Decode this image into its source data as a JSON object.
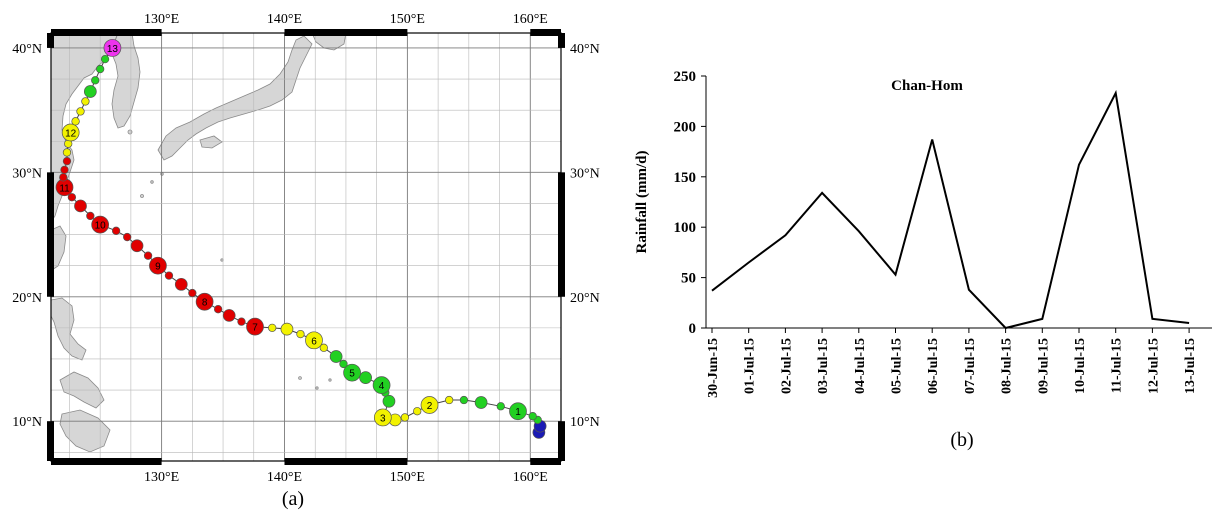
{
  "panel_a": {
    "caption": "(a)",
    "lon_labels": [
      "130°E",
      "140°E",
      "150°E",
      "160°E"
    ],
    "lat_labels": [
      "10°N",
      "20°N",
      "30°N",
      "40°N"
    ],
    "lon_values": [
      130,
      140,
      150,
      160
    ],
    "lat_values": [
      10,
      20,
      30,
      40
    ],
    "lon_range": [
      121,
      162.5
    ],
    "lat_range": [
      6.8,
      41.2
    ],
    "colors": {
      "red": "#e00000",
      "yellow": "#f2f200",
      "green": "#22d022",
      "blue": "#1a1ab5",
      "magenta": "#ee33ee",
      "land": "#d6d6d6"
    },
    "track": [
      {
        "lon": 160.7,
        "lat": 9.1,
        "c": "blue",
        "s": 2
      },
      {
        "lon": 160.8,
        "lat": 9.6,
        "c": "blue",
        "s": 2
      },
      {
        "lon": 160.6,
        "lat": 10.1,
        "c": "green",
        "s": 1
      },
      {
        "lon": 160.2,
        "lat": 10.4,
        "c": "green",
        "s": 1
      },
      {
        "lon": 159.0,
        "lat": 10.8,
        "c": "green",
        "s": 2,
        "label": "1"
      },
      {
        "lon": 157.6,
        "lat": 11.2,
        "c": "green",
        "s": 1
      },
      {
        "lon": 156.0,
        "lat": 11.5,
        "c": "green",
        "s": 2
      },
      {
        "lon": 154.6,
        "lat": 11.7,
        "c": "green",
        "s": 1
      },
      {
        "lon": 153.4,
        "lat": 11.7,
        "c": "yellow",
        "s": 1
      },
      {
        "lon": 151.8,
        "lat": 11.3,
        "c": "yellow",
        "s": 2,
        "label": "2"
      },
      {
        "lon": 150.8,
        "lat": 10.8,
        "c": "yellow",
        "s": 1
      },
      {
        "lon": 149.8,
        "lat": 10.3,
        "c": "yellow",
        "s": 1
      },
      {
        "lon": 149.0,
        "lat": 10.1,
        "c": "yellow",
        "s": 2
      },
      {
        "lon": 148.0,
        "lat": 10.3,
        "c": "yellow",
        "s": 2,
        "label": "3"
      },
      {
        "lon": 148.5,
        "lat": 11.6,
        "c": "green",
        "s": 2
      },
      {
        "lon": 148.2,
        "lat": 12.3,
        "c": "green",
        "s": 1
      },
      {
        "lon": 147.9,
        "lat": 12.9,
        "c": "green",
        "s": 2,
        "label": "4"
      },
      {
        "lon": 146.6,
        "lat": 13.5,
        "c": "green",
        "s": 2
      },
      {
        "lon": 145.5,
        "lat": 13.9,
        "c": "green",
        "s": 2,
        "label": "5"
      },
      {
        "lon": 144.8,
        "lat": 14.6,
        "c": "green",
        "s": 1
      },
      {
        "lon": 144.2,
        "lat": 15.2,
        "c": "green",
        "s": 2
      },
      {
        "lon": 143.2,
        "lat": 15.9,
        "c": "yellow",
        "s": 1
      },
      {
        "lon": 142.4,
        "lat": 16.5,
        "c": "yellow",
        "s": 2,
        "label": "6"
      },
      {
        "lon": 141.3,
        "lat": 17.0,
        "c": "yellow",
        "s": 1
      },
      {
        "lon": 140.2,
        "lat": 17.4,
        "c": "yellow",
        "s": 2
      },
      {
        "lon": 139.0,
        "lat": 17.5,
        "c": "yellow",
        "s": 1
      },
      {
        "lon": 137.6,
        "lat": 17.6,
        "c": "red",
        "s": 2,
        "label": "7"
      },
      {
        "lon": 136.5,
        "lat": 18.0,
        "c": "red",
        "s": 1
      },
      {
        "lon": 135.5,
        "lat": 18.5,
        "c": "red",
        "s": 2
      },
      {
        "lon": 134.6,
        "lat": 19.0,
        "c": "red",
        "s": 1
      },
      {
        "lon": 133.5,
        "lat": 19.6,
        "c": "red",
        "s": 2,
        "label": "8"
      },
      {
        "lon": 132.5,
        "lat": 20.3,
        "c": "red",
        "s": 1
      },
      {
        "lon": 131.6,
        "lat": 21.0,
        "c": "red",
        "s": 2
      },
      {
        "lon": 130.6,
        "lat": 21.7,
        "c": "red",
        "s": 1
      },
      {
        "lon": 129.7,
        "lat": 22.5,
        "c": "red",
        "s": 2,
        "label": "9"
      },
      {
        "lon": 128.9,
        "lat": 23.3,
        "c": "red",
        "s": 1
      },
      {
        "lon": 128.0,
        "lat": 24.1,
        "c": "red",
        "s": 2
      },
      {
        "lon": 127.2,
        "lat": 24.8,
        "c": "red",
        "s": 1
      },
      {
        "lon": 126.3,
        "lat": 25.3,
        "c": "red",
        "s": 1
      },
      {
        "lon": 125.0,
        "lat": 25.8,
        "c": "red",
        "s": 2,
        "label": "10"
      },
      {
        "lon": 124.2,
        "lat": 26.5,
        "c": "red",
        "s": 1
      },
      {
        "lon": 123.4,
        "lat": 27.3,
        "c": "red",
        "s": 2
      },
      {
        "lon": 122.7,
        "lat": 28.0,
        "c": "red",
        "s": 1
      },
      {
        "lon": 122.1,
        "lat": 28.8,
        "c": "red",
        "s": 2,
        "label": "11"
      },
      {
        "lon": 122.0,
        "lat": 29.6,
        "c": "red",
        "s": 1
      },
      {
        "lon": 122.1,
        "lat": 30.2,
        "c": "red",
        "s": 1
      },
      {
        "lon": 122.3,
        "lat": 30.9,
        "c": "red",
        "s": 1
      },
      {
        "lon": 122.3,
        "lat": 31.6,
        "c": "yellow",
        "s": 1
      },
      {
        "lon": 122.4,
        "lat": 32.3,
        "c": "yellow",
        "s": 1
      },
      {
        "lon": 122.6,
        "lat": 33.2,
        "c": "yellow",
        "s": 2,
        "label": "12"
      },
      {
        "lon": 123.0,
        "lat": 34.1,
        "c": "yellow",
        "s": 1
      },
      {
        "lon": 123.4,
        "lat": 34.9,
        "c": "yellow",
        "s": 1
      },
      {
        "lon": 123.8,
        "lat": 35.7,
        "c": "yellow",
        "s": 1
      },
      {
        "lon": 124.2,
        "lat": 36.5,
        "c": "green",
        "s": 2
      },
      {
        "lon": 124.6,
        "lat": 37.4,
        "c": "green",
        "s": 1
      },
      {
        "lon": 125.0,
        "lat": 38.3,
        "c": "green",
        "s": 1
      },
      {
        "lon": 125.4,
        "lat": 39.1,
        "c": "green",
        "s": 1
      },
      {
        "lon": 126.0,
        "lat": 40.0,
        "c": "magenta",
        "s": 2,
        "label": "13"
      }
    ]
  },
  "panel_b": {
    "caption": "(b)"
  },
  "chart_data": {
    "type": "line",
    "title": "Chan-Hom",
    "ylabel": "Rainfall (mm/d)",
    "xlabel": "",
    "ylim": [
      0,
      250
    ],
    "yticks": [
      0,
      50,
      100,
      150,
      200,
      250
    ],
    "categories": [
      "30-Jun-15",
      "01-Jul-15",
      "02-Jul-15",
      "03-Jul-15",
      "04-Jul-15",
      "05-Jul-15",
      "06-Jul-15",
      "07-Jul-15",
      "08-Jul-15",
      "09-Jul-15",
      "10-Jul-15",
      "11-Jul-15",
      "12-Jul-15",
      "13-Jul-15"
    ],
    "values": [
      37,
      65,
      92,
      134,
      96,
      53,
      187,
      38,
      0,
      9,
      162,
      233,
      9,
      5
    ],
    "line_color": "#000000",
    "grid": false,
    "legend": "none"
  }
}
